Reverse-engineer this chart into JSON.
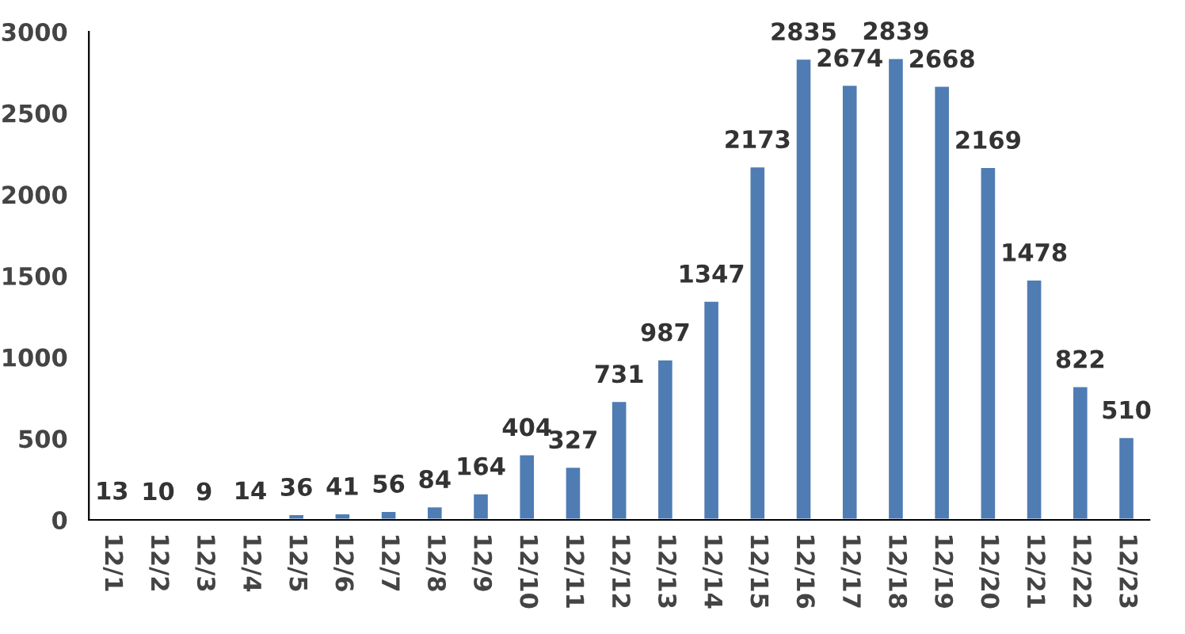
{
  "chart_data": {
    "type": "bar",
    "categories": [
      "12/1",
      "12/2",
      "12/3",
      "12/4",
      "12/5",
      "12/6",
      "12/7",
      "12/8",
      "12/9",
      "12/10",
      "12/11",
      "12/12",
      "12/13",
      "12/14",
      "12/15",
      "12/16",
      "12/17",
      "12/18",
      "12/19",
      "12/20",
      "12/21",
      "12/22",
      "12/23"
    ],
    "values": [
      13,
      10,
      9,
      14,
      36,
      41,
      56,
      84,
      164,
      404,
      327,
      731,
      987,
      1347,
      2173,
      2835,
      2674,
      2839,
      2668,
      2169,
      1478,
      822,
      510
    ],
    "color": "#4f7cb3",
    "ylim": [
      0,
      3000
    ],
    "yticks": [
      0,
      500,
      1000,
      1500,
      2000,
      2500,
      3000
    ],
    "data_labels": true,
    "grid": false,
    "legend": false
  }
}
